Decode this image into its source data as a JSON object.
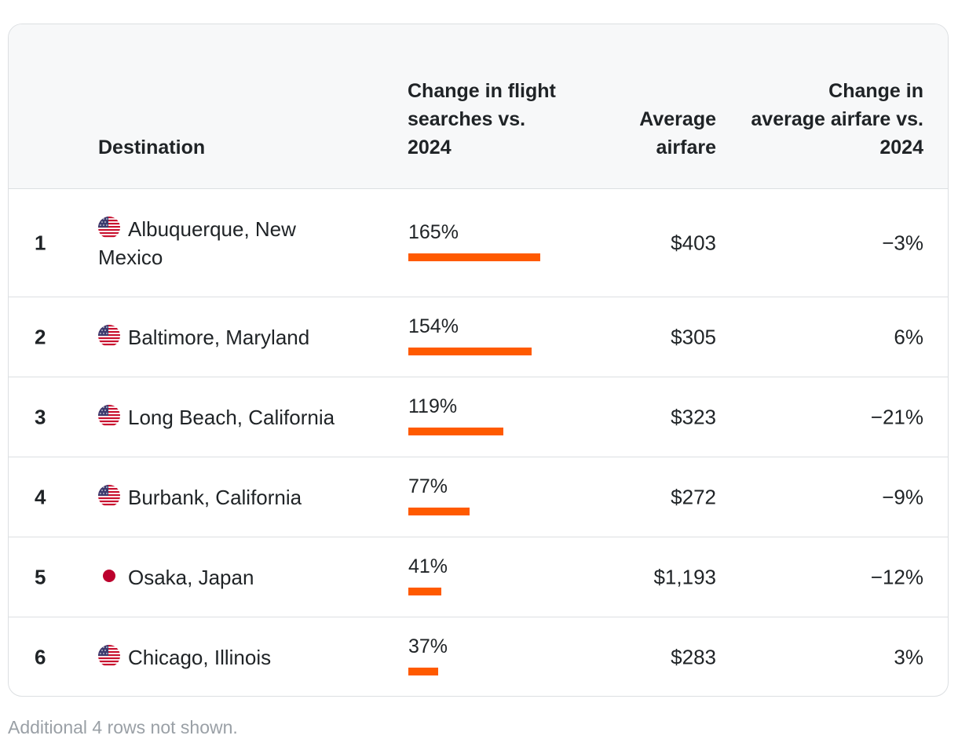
{
  "table": {
    "headers": {
      "destination": "Destination",
      "change_searches": "Change in flight searches vs. 2024",
      "avg_airfare": "Average airfare",
      "change_airfare": "Change in average airfare vs. 2024"
    },
    "rows": [
      {
        "rank": "1",
        "flag": "us-flag-icon",
        "destination": "Albuquerque, New Mexico",
        "change_searches": "165%",
        "avg_airfare": "$403",
        "change_airfare": "−3%"
      },
      {
        "rank": "2",
        "flag": "us-flag-icon",
        "destination": "Baltimore, Maryland",
        "change_searches": "154%",
        "avg_airfare": "$305",
        "change_airfare": "6%"
      },
      {
        "rank": "3",
        "flag": "us-flag-icon",
        "destination": "Long Beach, California",
        "change_searches": "119%",
        "avg_airfare": "$323",
        "change_airfare": "−21%"
      },
      {
        "rank": "4",
        "flag": "us-flag-icon",
        "destination": "Burbank, California",
        "change_searches": "77%",
        "avg_airfare": "$272",
        "change_airfare": "−9%"
      },
      {
        "rank": "5",
        "flag": "japan-flag-icon",
        "destination": "Osaka, Japan",
        "change_searches": "41%",
        "avg_airfare": "$1,193",
        "change_airfare": "−12%"
      },
      {
        "rank": "6",
        "flag": "us-flag-icon",
        "destination": "Chicago, Illinois",
        "change_searches": "37%",
        "avg_airfare": "$283",
        "change_airfare": "3%"
      }
    ],
    "footnote": "Additional 4 rows not shown."
  },
  "colors": {
    "bar": "#ff5a00",
    "header_bg": "#f7f8f9",
    "border": "#dcdfe2"
  },
  "chart_data": {
    "type": "table",
    "columns": [
      "Destination",
      "Change in flight searches vs. 2024",
      "Average airfare",
      "Change in average airfare vs. 2024"
    ],
    "categories": [
      "Albuquerque, New Mexico",
      "Baltimore, Maryland",
      "Long Beach, California",
      "Burbank, California",
      "Osaka, Japan",
      "Chicago, Illinois"
    ],
    "series": [
      {
        "name": "Change in flight searches vs. 2024",
        "values": [
          165,
          154,
          119,
          77,
          41,
          37
        ]
      },
      {
        "name": "Average airfare",
        "values": [
          403,
          305,
          323,
          272,
          1193,
          283
        ]
      },
      {
        "name": "Change in average airfare vs. 2024",
        "values": [
          -3,
          6,
          -21,
          -9,
          -12,
          3
        ]
      }
    ]
  }
}
